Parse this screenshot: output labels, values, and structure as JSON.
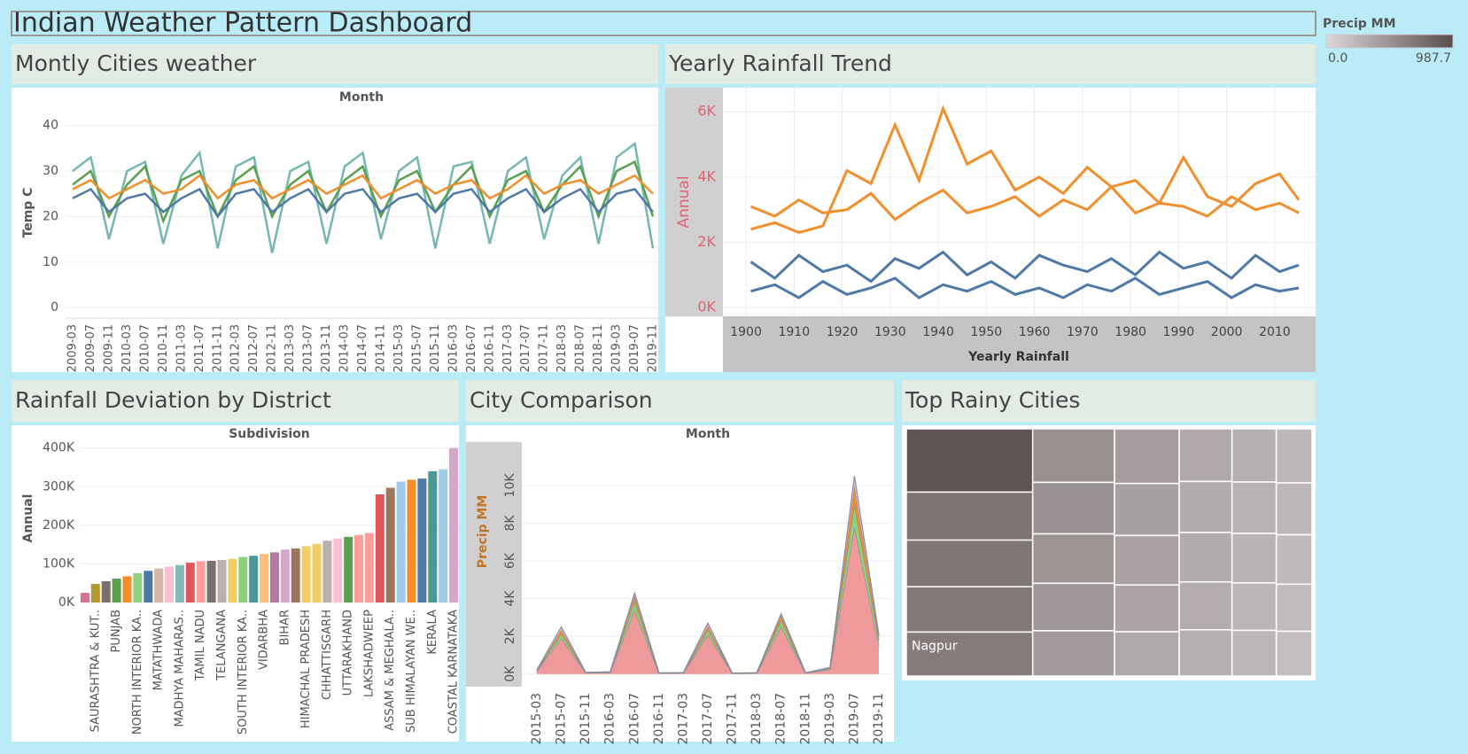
{
  "title": "Indian Weather Pattern Dashboard",
  "chart_data": [
    {
      "type": "line",
      "title": "Montly Cities weather",
      "x_label": "Month",
      "y_label": "Temp C",
      "categories": [
        "2009-03",
        "2009-07",
        "2009-11",
        "2010-03",
        "2010-07",
        "2010-11",
        "2011-03",
        "2011-07",
        "2011-11",
        "2012-03",
        "2012-07",
        "2012-11",
        "2013-03",
        "2013-07",
        "2013-11",
        "2014-03",
        "2014-07",
        "2014-11",
        "2015-03",
        "2015-07",
        "2015-11",
        "2016-03",
        "2016-07",
        "2016-11",
        "2017-03",
        "2017-07",
        "2017-11",
        "2018-03",
        "2018-07",
        "2018-11",
        "2019-03",
        "2019-07",
        "2019-11"
      ],
      "series": [
        {
          "color": "#76b7b2",
          "values": [
            30,
            33,
            15,
            30,
            32,
            14,
            29,
            34,
            13,
            31,
            33,
            12,
            30,
            32,
            14,
            31,
            34,
            15,
            30,
            33,
            13,
            31,
            32,
            14,
            30,
            33,
            15,
            29,
            33,
            14,
            33,
            36,
            13
          ]
        },
        {
          "color": "#59a14f",
          "values": [
            27,
            30,
            20,
            27,
            31,
            19,
            28,
            30,
            20,
            28,
            31,
            20,
            27,
            30,
            21,
            28,
            31,
            20,
            28,
            30,
            21,
            27,
            31,
            20,
            28,
            30,
            21,
            27,
            31,
            20,
            30,
            32,
            20
          ]
        },
        {
          "color": "#f28e2b",
          "values": [
            26,
            28,
            24,
            26,
            28,
            25,
            26,
            29,
            24,
            27,
            28,
            24,
            26,
            28,
            25,
            27,
            29,
            24,
            26,
            28,
            25,
            27,
            28,
            24,
            26,
            29,
            25,
            27,
            28,
            25,
            27,
            29,
            25
          ]
        },
        {
          "color": "#4e79a7",
          "values": [
            24,
            26,
            21,
            24,
            25,
            21,
            24,
            26,
            20,
            25,
            26,
            21,
            24,
            26,
            21,
            25,
            26,
            21,
            24,
            25,
            21,
            25,
            26,
            21,
            24,
            26,
            21,
            24,
            26,
            21,
            25,
            26,
            21
          ]
        }
      ],
      "ylim": [
        -2.3,
        44
      ],
      "yticks": [
        0,
        10,
        20,
        30,
        40
      ],
      "grid": true
    },
    {
      "type": "line",
      "title": "Yearly Rainfall Trend",
      "x_label": "Yearly Rainfall",
      "y_label": "Annual",
      "x": [
        1901,
        1906,
        1911,
        1916,
        1921,
        1926,
        1931,
        1936,
        1941,
        1946,
        1951,
        1956,
        1961,
        1966,
        1971,
        1976,
        1981,
        1986,
        1991,
        1996,
        2001,
        2006,
        2011,
        2015
      ],
      "series": [
        {
          "color": "#f28e2b",
          "values": [
            3100,
            2800,
            3300,
            2900,
            3000,
            3500,
            2700,
            3200,
            3600,
            2900,
            3100,
            3400,
            2800,
            3300,
            3000,
            3700,
            2900,
            3200,
            3100,
            2800,
            3400,
            3000,
            3200,
            2900
          ]
        },
        {
          "color": "#f28e2b",
          "values": [
            2400,
            2600,
            2300,
            2500,
            4200,
            3800,
            5600,
            3900,
            6100,
            4400,
            4800,
            3600,
            4000,
            3500,
            4300,
            3700,
            3900,
            3200,
            4600,
            3400,
            3100,
            3800,
            4100,
            3300
          ]
        },
        {
          "color": "#4e79a7",
          "values": [
            1400,
            900,
            1600,
            1100,
            1300,
            800,
            1500,
            1200,
            1700,
            1000,
            1400,
            900,
            1600,
            1300,
            1100,
            1500,
            1000,
            1700,
            1200,
            1400,
            900,
            1600,
            1100,
            1300
          ]
        },
        {
          "color": "#4e79a7",
          "values": [
            500,
            700,
            300,
            800,
            400,
            600,
            900,
            300,
            700,
            500,
            800,
            400,
            600,
            300,
            700,
            500,
            900,
            400,
            600,
            800,
            300,
            700,
            500,
            600
          ]
        }
      ],
      "xlim": [
        1895.2,
        2018.5
      ],
      "xticks": [
        1900,
        1910,
        1920,
        1930,
        1940,
        1950,
        1960,
        1970,
        1980,
        1990,
        2000,
        2010
      ],
      "ylim": [
        -270,
        6740
      ],
      "yticks": [
        {
          "value": 0,
          "label": "0K"
        },
        {
          "value": 2000,
          "label": "2K"
        },
        {
          "value": 4000,
          "label": "4K"
        },
        {
          "value": 6000,
          "label": "6K"
        }
      ],
      "grid": true
    },
    {
      "type": "bar",
      "title": "Rainfall Deviation by District",
      "x_label": "Subdivision",
      "y_label": "Annual",
      "categories": [
        null,
        "SAURASHTRA & KUT..",
        null,
        "PUNJAB",
        null,
        "NORTH INTERIOR KA..",
        null,
        "MATATHWADA",
        null,
        "MADHYA MAHARAS..",
        null,
        "TAMIL NADU",
        null,
        "TELANGANA",
        null,
        "SOUTH INTERIOR KA..",
        null,
        "VIDARBHA",
        null,
        "BIHAR",
        null,
        "HIMACHAL PRADESH",
        null,
        "CHHATTISGARH",
        null,
        "UTTARAKHAND",
        null,
        "LAKSHADWEEP",
        null,
        "ASSAM & MEGHALA..",
        null,
        "SUB HIMALAYAN WE..",
        null,
        "KERALA",
        null,
        "COASTAL KARNATAKA"
      ],
      "values": [
        25000,
        48000,
        55000,
        62000,
        68000,
        76000,
        82000,
        88000,
        93000,
        97000,
        103000,
        107000,
        108000,
        110000,
        113000,
        118000,
        121000,
        126000,
        130000,
        137000,
        140000,
        146000,
        152000,
        160000,
        166000,
        170000,
        175000,
        180000,
        280000,
        297000,
        313000,
        318000,
        321000,
        340000,
        345000,
        400000
      ],
      "colors": [
        "#d37295",
        "#b6992d",
        "#79706e",
        "#59a14f",
        "#f28e2b",
        "#8cd17d",
        "#4e79a7",
        "#d7b5a6",
        "#fabfd2",
        "#86bcb6",
        "#e15759",
        "#ff9d9a",
        "#79706e",
        "#bab0ac",
        "#f1ce63",
        "#8cd17d",
        "#499894",
        "#ffbe7d",
        "#b07aa1",
        "#d4a6c8",
        "#9d7660",
        "#f1ce63",
        "#f1ce63",
        "#bab0ac",
        "#fabfd2",
        "#59a14f",
        "#ff9d9a",
        "#ff9d9a",
        "#e15759",
        "#9d7660",
        "#a0cbe8",
        "#f28e2b",
        "#4e79a7",
        "#499894",
        "#a0cbe8",
        "#d4a6c8"
      ],
      "ylim": [
        0,
        420000
      ],
      "yticks": [
        {
          "value": 0,
          "label": "0K"
        },
        {
          "value": 100000,
          "label": "100K"
        },
        {
          "value": 200000,
          "label": "200K"
        },
        {
          "value": 300000,
          "label": "300K"
        },
        {
          "value": 400000,
          "label": "400K"
        }
      ],
      "grid": true
    },
    {
      "type": "area",
      "title": "City Comparison",
      "x_label": "Month",
      "y_label": "Precip MM",
      "stacked": true,
      "categories": [
        "2015-03",
        "2015-07",
        "2015-11",
        "2016-03",
        "2016-07",
        "2016-11",
        "2017-03",
        "2017-07",
        "2017-11",
        "2018-03",
        "2018-07",
        "2018-11",
        "2019-03",
        "2019-07",
        "2019-11"
      ],
      "series": [
        {
          "color": "#ef9a9a",
          "values": [
            150,
            1900,
            60,
            80,
            3400,
            40,
            50,
            2100,
            30,
            40,
            2500,
            50,
            250,
            7800,
            1500
          ]
        },
        {
          "color": "#8cd17d",
          "values": [
            30,
            250,
            10,
            20,
            450,
            10,
            10,
            250,
            10,
            10,
            350,
            10,
            50,
            1200,
            300
          ]
        },
        {
          "color": "#f28e2b",
          "values": [
            20,
            200,
            10,
            10,
            300,
            5,
            10,
            200,
            5,
            10,
            250,
            5,
            30,
            1000,
            200
          ]
        },
        {
          "color": "#fabfd2",
          "values": [
            20,
            150,
            10,
            10,
            150,
            5,
            10,
            150,
            5,
            10,
            100,
            5,
            20,
            500,
            100
          ]
        }
      ],
      "ylim": [
        -670,
        12300
      ],
      "yticks": [
        {
          "value": 0,
          "label": "0K"
        },
        {
          "value": 2000,
          "label": "2K"
        },
        {
          "value": 4000,
          "label": "4K"
        },
        {
          "value": 6000,
          "label": "6K"
        },
        {
          "value": 8000,
          "label": "8K"
        },
        {
          "value": 10000,
          "label": "10K"
        }
      ],
      "grid": true
    },
    {
      "type": "treemap",
      "title": "Top Rainy Cities",
      "legend_title": "Precip MM",
      "categories": [
        null,
        null,
        null,
        null,
        "Nagpur",
        null,
        null,
        null,
        null,
        null,
        null,
        null,
        null,
        null,
        null,
        null,
        null,
        null,
        null,
        null,
        null,
        null,
        null,
        null,
        null,
        null,
        null,
        null,
        null,
        null
      ],
      "values": [
        950,
        720,
        700,
        680,
        660,
        520,
        500,
        480,
        460,
        440,
        420,
        400,
        380,
        360,
        340,
        330,
        320,
        310,
        300,
        290,
        280,
        270,
        260,
        250,
        240,
        230,
        220,
        210,
        200,
        190
      ],
      "colorlim": [
        0,
        987.7
      ],
      "colorticks": [
        {
          "value": 0,
          "label": "0.0"
        },
        987.7
      ],
      "color_range": [
        "#dcd7d7",
        "#5a4e4e"
      ]
    }
  ]
}
